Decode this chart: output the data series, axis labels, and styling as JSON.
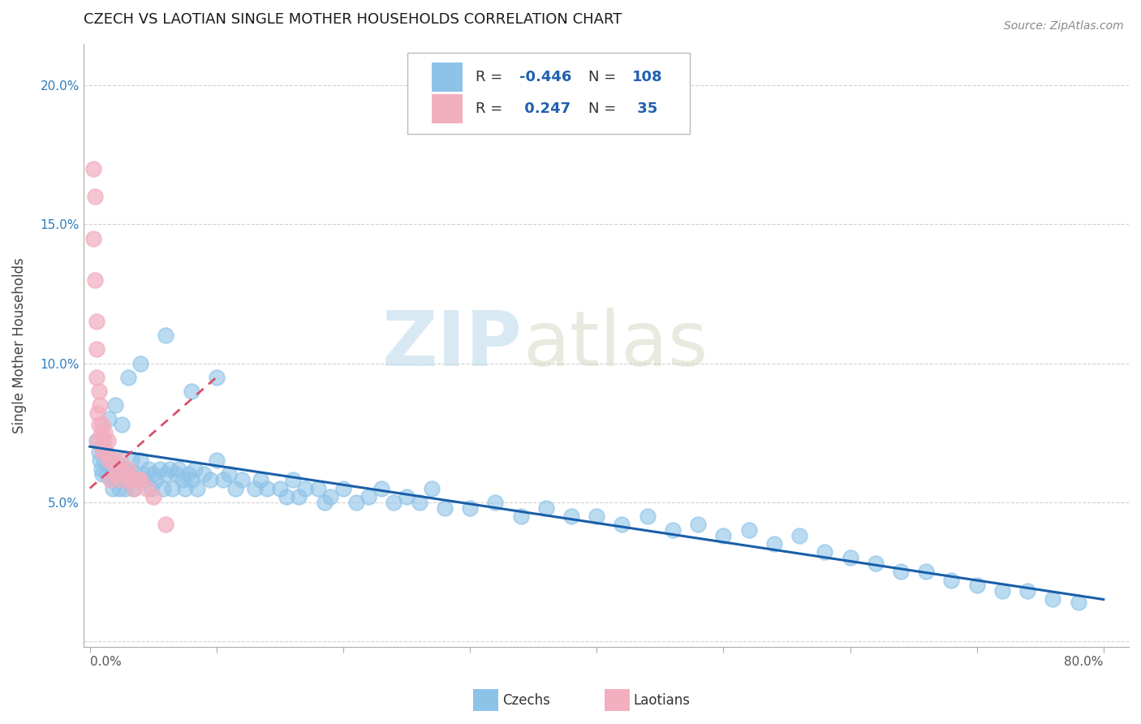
{
  "title": "CZECH VS LAOTIAN SINGLE MOTHER HOUSEHOLDS CORRELATION CHART",
  "source": "Source: ZipAtlas.com",
  "ylabel": "Single Mother Households",
  "xlim": [
    -0.005,
    0.82
  ],
  "ylim": [
    -0.002,
    0.215
  ],
  "xticks": [
    0.0,
    0.1,
    0.2,
    0.3,
    0.4,
    0.5,
    0.6,
    0.7,
    0.8
  ],
  "xticklabels": [
    "0.0%",
    "",
    "",
    "",
    "",
    "",
    "",
    "",
    "80.0%"
  ],
  "yticks": [
    0.0,
    0.05,
    0.1,
    0.15,
    0.2
  ],
  "yticklabels": [
    "",
    "5.0%",
    "10.0%",
    "15.0%",
    "20.0%"
  ],
  "czech_color": "#8ec3e8",
  "laotian_color": "#f2afc0",
  "czech_line_color": "#1a5fa8",
  "laotian_line_color": "#d9506a",
  "czech_R": -0.446,
  "czech_N": 108,
  "laotian_R": 0.247,
  "laotian_N": 35,
  "watermark_zip": "ZIP",
  "watermark_atlas": "atlas",
  "legend_label_czech": "Czechs",
  "legend_label_laotian": "Laotians",
  "czech_x": [
    0.005,
    0.007,
    0.008,
    0.009,
    0.01,
    0.01,
    0.011,
    0.012,
    0.013,
    0.015,
    0.016,
    0.017,
    0.018,
    0.019,
    0.02,
    0.021,
    0.022,
    0.023,
    0.025,
    0.026,
    0.027,
    0.028,
    0.03,
    0.031,
    0.033,
    0.034,
    0.036,
    0.038,
    0.04,
    0.042,
    0.044,
    0.046,
    0.048,
    0.05,
    0.052,
    0.055,
    0.058,
    0.06,
    0.063,
    0.065,
    0.068,
    0.07,
    0.073,
    0.075,
    0.078,
    0.08,
    0.083,
    0.085,
    0.09,
    0.095,
    0.1,
    0.105,
    0.11,
    0.115,
    0.12,
    0.13,
    0.135,
    0.14,
    0.15,
    0.155,
    0.16,
    0.165,
    0.17,
    0.18,
    0.185,
    0.19,
    0.2,
    0.21,
    0.22,
    0.23,
    0.24,
    0.25,
    0.26,
    0.27,
    0.28,
    0.3,
    0.32,
    0.34,
    0.36,
    0.38,
    0.4,
    0.42,
    0.44,
    0.46,
    0.48,
    0.5,
    0.52,
    0.54,
    0.56,
    0.58,
    0.6,
    0.62,
    0.64,
    0.66,
    0.68,
    0.7,
    0.72,
    0.74,
    0.76,
    0.78,
    0.04,
    0.06,
    0.08,
    0.1,
    0.02,
    0.03,
    0.015,
    0.025
  ],
  "czech_y": [
    0.072,
    0.068,
    0.065,
    0.062,
    0.07,
    0.06,
    0.065,
    0.068,
    0.06,
    0.065,
    0.062,
    0.058,
    0.055,
    0.06,
    0.065,
    0.058,
    0.062,
    0.055,
    0.06,
    0.058,
    0.062,
    0.055,
    0.06,
    0.058,
    0.065,
    0.055,
    0.06,
    0.058,
    0.065,
    0.06,
    0.058,
    0.062,
    0.055,
    0.06,
    0.058,
    0.062,
    0.055,
    0.06,
    0.062,
    0.055,
    0.06,
    0.062,
    0.058,
    0.055,
    0.06,
    0.058,
    0.062,
    0.055,
    0.06,
    0.058,
    0.065,
    0.058,
    0.06,
    0.055,
    0.058,
    0.055,
    0.058,
    0.055,
    0.055,
    0.052,
    0.058,
    0.052,
    0.055,
    0.055,
    0.05,
    0.052,
    0.055,
    0.05,
    0.052,
    0.055,
    0.05,
    0.052,
    0.05,
    0.055,
    0.048,
    0.048,
    0.05,
    0.045,
    0.048,
    0.045,
    0.045,
    0.042,
    0.045,
    0.04,
    0.042,
    0.038,
    0.04,
    0.035,
    0.038,
    0.032,
    0.03,
    0.028,
    0.025,
    0.025,
    0.022,
    0.02,
    0.018,
    0.018,
    0.015,
    0.014,
    0.1,
    0.11,
    0.09,
    0.095,
    0.085,
    0.095,
    0.08,
    0.078
  ],
  "laotian_x": [
    0.003,
    0.003,
    0.004,
    0.004,
    0.005,
    0.005,
    0.005,
    0.006,
    0.006,
    0.007,
    0.007,
    0.008,
    0.009,
    0.01,
    0.01,
    0.011,
    0.012,
    0.013,
    0.014,
    0.015,
    0.016,
    0.018,
    0.02,
    0.022,
    0.024,
    0.025,
    0.028,
    0.03,
    0.033,
    0.035,
    0.038,
    0.04,
    0.045,
    0.05,
    0.06
  ],
  "laotian_y": [
    0.17,
    0.145,
    0.16,
    0.13,
    0.115,
    0.105,
    0.095,
    0.082,
    0.072,
    0.09,
    0.078,
    0.085,
    0.075,
    0.078,
    0.068,
    0.072,
    0.075,
    0.068,
    0.072,
    0.065,
    0.058,
    0.065,
    0.06,
    0.062,
    0.065,
    0.058,
    0.06,
    0.062,
    0.058,
    0.055,
    0.058,
    0.058,
    0.055,
    0.052,
    0.042
  ]
}
